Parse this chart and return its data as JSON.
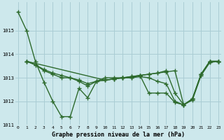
{
  "xlabel": "Graphe pression niveau de la mer (hPa)",
  "background_color": "#cde8ec",
  "grid_color": "#aacdd4",
  "line_color": "#2d6a2d",
  "series": [
    {
      "x": [
        0,
        1,
        2,
        3,
        4,
        5,
        6,
        7,
        8,
        9,
        10,
        11,
        12,
        13,
        14,
        15,
        16,
        17,
        18,
        19,
        20,
        21,
        22,
        23
      ],
      "y": [
        1015.8,
        1015.0,
        1013.7,
        1012.8,
        1012.0,
        1011.35,
        1011.35,
        1012.55,
        1012.15,
        1012.85,
        1013.0,
        1013.0,
        1013.0,
        1013.0,
        1013.1,
        1012.35,
        1012.35,
        1012.35,
        1011.95,
        1011.85,
        1012.1,
        1013.15,
        1013.7,
        1013.7
      ]
    },
    {
      "x": [
        1,
        2,
        3,
        4,
        5,
        6,
        7,
        8,
        9,
        10,
        11,
        12,
        13,
        14,
        15,
        16,
        17,
        18,
        19,
        20,
        21,
        22,
        23
      ],
      "y": [
        1013.7,
        1013.55,
        1013.3,
        1013.15,
        1013.0,
        1013.0,
        1012.85,
        1012.65,
        1012.85,
        1012.9,
        1012.95,
        1013.0,
        1013.0,
        1013.05,
        1013.0,
        1012.85,
        1012.75,
        1012.0,
        1011.85,
        1012.05,
        1013.1,
        1013.65,
        1013.7
      ]
    },
    {
      "x": [
        1,
        2,
        3,
        4,
        5,
        6,
        7,
        8,
        9,
        10,
        11,
        12,
        13,
        14,
        15,
        16,
        17,
        18,
        19,
        20,
        21,
        22,
        23
      ],
      "y": [
        1013.7,
        1013.55,
        1013.35,
        1013.2,
        1013.1,
        1013.0,
        1012.9,
        1012.75,
        1012.85,
        1012.9,
        1012.95,
        1013.0,
        1013.05,
        1013.1,
        1013.15,
        1013.2,
        1013.25,
        1013.3,
        1011.85,
        1012.1,
        1013.15,
        1013.7,
        1013.7
      ]
    },
    {
      "x": [
        1,
        10,
        11,
        12,
        13,
        14,
        15,
        16,
        17,
        18,
        19,
        20,
        21,
        22,
        23
      ],
      "y": [
        1013.7,
        1012.9,
        1012.95,
        1013.0,
        1013.05,
        1013.1,
        1013.15,
        1013.2,
        1013.3,
        1012.35,
        1011.85,
        1012.1,
        1013.15,
        1013.7,
        1013.7
      ]
    }
  ],
  "ylim": [
    1011.0,
    1016.2
  ],
  "yticks": [
    1011,
    1012,
    1013,
    1014,
    1015
  ],
  "xticks": [
    0,
    1,
    2,
    3,
    4,
    5,
    6,
    7,
    8,
    9,
    10,
    11,
    12,
    13,
    14,
    15,
    16,
    17,
    18,
    19,
    20,
    21,
    22,
    23
  ],
  "xlim": [
    -0.3,
    23.3
  ],
  "marker": "+",
  "markersize": 4,
  "linewidth": 1.0
}
